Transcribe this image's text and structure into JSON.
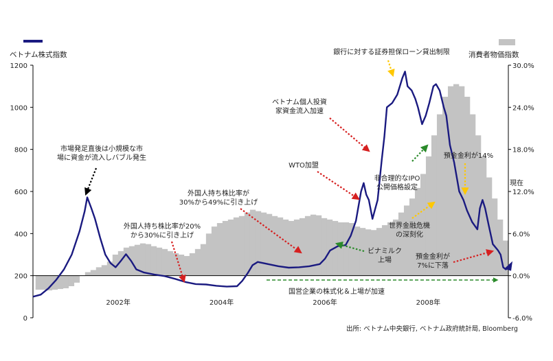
{
  "chart_data": {
    "type": "line+bar",
    "legend_left": "ベトナム株式指数",
    "legend_right": "消費者物価指数",
    "source": "出所: ベトナム中央銀行, ベトナム政府統計局, Bloomberg",
    "left_axis": {
      "min": 0,
      "max": 1200,
      "ticks": [
        "0",
        "200",
        "400",
        "600",
        "800",
        "1000",
        "1200"
      ],
      "tick_values": [
        0,
        200,
        400,
        600,
        800,
        1000,
        1200
      ]
    },
    "right_axis": {
      "min": -6,
      "max": 30,
      "ticks": [
        "-6.0%",
        "0.0%",
        "6.0%",
        "12.0%",
        "18.0%",
        "24.0%",
        "30.0%"
      ],
      "tick_values": [
        -6,
        0,
        6,
        12,
        18,
        24,
        30
      ]
    },
    "x_axis": {
      "min": 2000.55,
      "max": 2009.75,
      "ticks": [
        "2002年",
        "2004年",
        "2006年",
        "2008年"
      ],
      "tick_values": [
        2002.2,
        2004.2,
        2006.2,
        2008.2
      ]
    },
    "colors": {
      "line": "#1a1a80",
      "bars": "#c3c3c3",
      "red": "#d62020",
      "yellow": "#ffc800",
      "green": "#2a8a2a",
      "black": "#000000"
    },
    "index_series": {
      "name": "ベトナム株式指数",
      "points": [
        [
          2000.55,
          100
        ],
        [
          2000.7,
          110
        ],
        [
          2000.85,
          140
        ],
        [
          2001.0,
          180
        ],
        [
          2001.15,
          230
        ],
        [
          2001.3,
          300
        ],
        [
          2001.45,
          410
        ],
        [
          2001.55,
          505
        ],
        [
          2001.6,
          572
        ],
        [
          2001.68,
          520
        ],
        [
          2001.75,
          470
        ],
        [
          2001.85,
          380
        ],
        [
          2001.95,
          300
        ],
        [
          2002.05,
          260
        ],
        [
          2002.15,
          240
        ],
        [
          2002.25,
          270
        ],
        [
          2002.35,
          302
        ],
        [
          2002.45,
          270
        ],
        [
          2002.55,
          230
        ],
        [
          2002.7,
          215
        ],
        [
          2002.9,
          205
        ],
        [
          2003.1,
          198
        ],
        [
          2003.3,
          185
        ],
        [
          2003.5,
          170
        ],
        [
          2003.7,
          160
        ],
        [
          2003.9,
          158
        ],
        [
          2004.1,
          152
        ],
        [
          2004.3,
          148
        ],
        [
          2004.5,
          150
        ],
        [
          2004.6,
          175
        ],
        [
          2004.7,
          210
        ],
        [
          2004.8,
          250
        ],
        [
          2004.9,
          265
        ],
        [
          2005.1,
          255
        ],
        [
          2005.3,
          245
        ],
        [
          2005.5,
          238
        ],
        [
          2005.7,
          240
        ],
        [
          2005.9,
          245
        ],
        [
          2006.1,
          255
        ],
        [
          2006.2,
          280
        ],
        [
          2006.3,
          320
        ],
        [
          2006.45,
          340
        ],
        [
          2006.6,
          345
        ],
        [
          2006.7,
          390
        ],
        [
          2006.8,
          460
        ],
        [
          2006.9,
          600
        ],
        [
          2006.95,
          640
        ],
        [
          2007.0,
          585
        ],
        [
          2007.05,
          560
        ],
        [
          2007.12,
          470
        ],
        [
          2007.22,
          560
        ],
        [
          2007.3,
          750
        ],
        [
          2007.35,
          860
        ],
        [
          2007.4,
          1000
        ],
        [
          2007.5,
          1020
        ],
        [
          2007.6,
          1060
        ],
        [
          2007.7,
          1140
        ],
        [
          2007.75,
          1170
        ],
        [
          2007.8,
          1100
        ],
        [
          2007.88,
          1080
        ],
        [
          2007.95,
          1040
        ],
        [
          2008.0,
          1000
        ],
        [
          2008.08,
          920
        ],
        [
          2008.15,
          960
        ],
        [
          2008.22,
          1020
        ],
        [
          2008.3,
          1100
        ],
        [
          2008.35,
          1110
        ],
        [
          2008.42,
          1080
        ],
        [
          2008.5,
          1000
        ],
        [
          2008.55,
          960
        ],
        [
          2008.62,
          820
        ],
        [
          2008.7,
          740
        ],
        [
          2008.8,
          600
        ],
        [
          2008.88,
          560
        ],
        [
          2008.95,
          510
        ],
        [
          2009.05,
          455
        ],
        [
          2009.15,
          420
        ],
        [
          2009.2,
          520
        ],
        [
          2009.25,
          560
        ],
        [
          2009.3,
          520
        ],
        [
          2009.37,
          440
        ],
        [
          2009.45,
          350
        ],
        [
          2009.55,
          320
        ],
        [
          2009.6,
          300
        ],
        [
          2009.65,
          240
        ],
        [
          2009.7,
          230
        ],
        [
          2009.75,
          236
        ]
      ]
    },
    "cpi_series": {
      "name": "消費者物価指数",
      "x_start": 2000.6,
      "x_end": 2009.75,
      "values": [
        -2.0,
        -2.0,
        -2.1,
        -2.0,
        -1.9,
        -1.8,
        -1.5,
        -1.0,
        0.0,
        0.5,
        0.8,
        1.2,
        1.5,
        2.0,
        3.0,
        3.5,
        4.0,
        4.2,
        4.4,
        4.6,
        4.5,
        4.2,
        4.0,
        3.8,
        3.5,
        3.2,
        3.0,
        2.8,
        3.2,
        3.8,
        4.5,
        6.0,
        7.0,
        7.5,
        7.8,
        8.0,
        8.3,
        8.5,
        9.0,
        9.4,
        9.2,
        9.0,
        8.8,
        8.5,
        8.3,
        8.0,
        7.8,
        8.0,
        8.2,
        8.5,
        8.7,
        8.6,
        8.2,
        8.0,
        7.8,
        7.6,
        7.6,
        7.5,
        7.0,
        6.8,
        6.6,
        6.5,
        6.8,
        7.2,
        7.6,
        8.0,
        9.0,
        10.0,
        11.0,
        12.5,
        14.5,
        17.0,
        20.0,
        23.0,
        25.5,
        27.0,
        27.3,
        27.0,
        25.5,
        23.0,
        20.0,
        17.0,
        14.0,
        11.0,
        8.0,
        5.0
      ]
    },
    "annotations": [
      {
        "id": "market_start",
        "lines": [
          "市場発足直後は小規模な市",
          "場に資金が流入しバブル発生"
        ]
      },
      {
        "id": "foreign_20",
        "lines": [
          "外国人持ち株比率が20%",
          "から30%に引き上げ"
        ]
      },
      {
        "id": "foreign_30",
        "lines": [
          "外国人持ち株比率が",
          "30%から49%に引き上げ"
        ]
      },
      {
        "id": "wto",
        "lines": [
          "WTO加盟"
        ]
      },
      {
        "id": "individual",
        "lines": [
          "ベトナム個人投資",
          "家資金流入加速"
        ]
      },
      {
        "id": "bank_limit",
        "lines": [
          "銀行に対する証券担保ローン貸出制限"
        ]
      },
      {
        "id": "ipo",
        "lines": [
          "非合理的なIPO",
          "公開価格設定"
        ]
      },
      {
        "id": "bimil",
        "lines": [
          "ビナミルク",
          "上場"
        ]
      },
      {
        "id": "soe",
        "lines": [
          "国営企業の株式化＆上場が加速"
        ]
      },
      {
        "id": "crisis",
        "lines": [
          "世界金融危機",
          "の深刻化"
        ]
      },
      {
        "id": "rate14",
        "lines": [
          "預金金利が14%"
        ]
      },
      {
        "id": "rate7",
        "lines": [
          "預金金利が",
          "7%に下落"
        ]
      },
      {
        "id": "now",
        "lines": [
          "現在"
        ]
      }
    ]
  }
}
